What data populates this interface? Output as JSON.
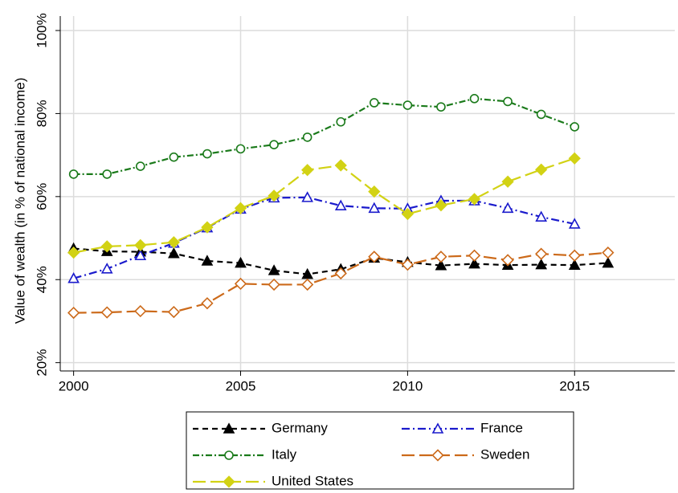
{
  "chart_data": {
    "type": "line",
    "y_label": "Value of wealth (in % of national income)",
    "x": [
      2000,
      2001,
      2002,
      2003,
      2004,
      2005,
      2006,
      2007,
      2008,
      2009,
      2010,
      2011,
      2012,
      2013,
      2014,
      2015,
      2016
    ],
    "xlim": [
      1999.6,
      2018
    ],
    "xticks": [
      2000,
      2005,
      2010,
      2015
    ],
    "ylim": [
      18,
      100
    ],
    "yticks": [
      {
        "value": 20,
        "label": "20%"
      },
      {
        "value": 40,
        "label": "40%"
      },
      {
        "value": 60,
        "label": "60%"
      },
      {
        "value": 80,
        "label": "80%"
      },
      {
        "value": 100,
        "label": "100%"
      }
    ],
    "grid": true,
    "series": [
      {
        "name": "Germany",
        "color": "#000000",
        "marker": "triangle",
        "filled": true,
        "dash": "7,5",
        "values": [
          47.5,
          46.8,
          46.7,
          46.3,
          44.5,
          44.0,
          42.2,
          41.3,
          42.5,
          45.2,
          44.2,
          43.4,
          43.8,
          43.5,
          43.6,
          43.5,
          44.0
        ]
      },
      {
        "name": "France",
        "color": "#1a1acc",
        "marker": "triangle",
        "filled": false,
        "dash": "10,4,2,4",
        "values": [
          40.3,
          42.6,
          45.8,
          48.8,
          52.5,
          57.0,
          59.7,
          59.8,
          57.8,
          57.2,
          57.1,
          59.0,
          59.0,
          57.2,
          55.1,
          53.4,
          null
        ]
      },
      {
        "name": "Italy",
        "color": "#1a7a1a",
        "marker": "circle",
        "filled": false,
        "dash": "8,3,2,3",
        "values": [
          65.4,
          65.4,
          67.3,
          69.5,
          70.3,
          71.5,
          72.5,
          74.3,
          78.0,
          82.6,
          82.0,
          81.6,
          83.6,
          82.9,
          79.8,
          76.8,
          null
        ]
      },
      {
        "name": "Sweden",
        "color": "#cc6a1a",
        "marker": "diamond",
        "filled": false,
        "dash": "16,6",
        "values": [
          32.0,
          32.1,
          32.4,
          32.2,
          34.3,
          39.0,
          38.8,
          38.8,
          41.5,
          45.5,
          43.6,
          45.5,
          45.8,
          44.7,
          46.2,
          45.8,
          46.5
        ]
      },
      {
        "name": "United States",
        "color": "#d2d214",
        "marker": "diamond",
        "filled": true,
        "dash": "16,6",
        "values": [
          46.5,
          48.0,
          48.3,
          49.0,
          52.6,
          57.2,
          60.2,
          66.4,
          67.5,
          61.2,
          55.8,
          57.9,
          59.4,
          63.6,
          66.5,
          69.2,
          null
        ]
      }
    ]
  }
}
